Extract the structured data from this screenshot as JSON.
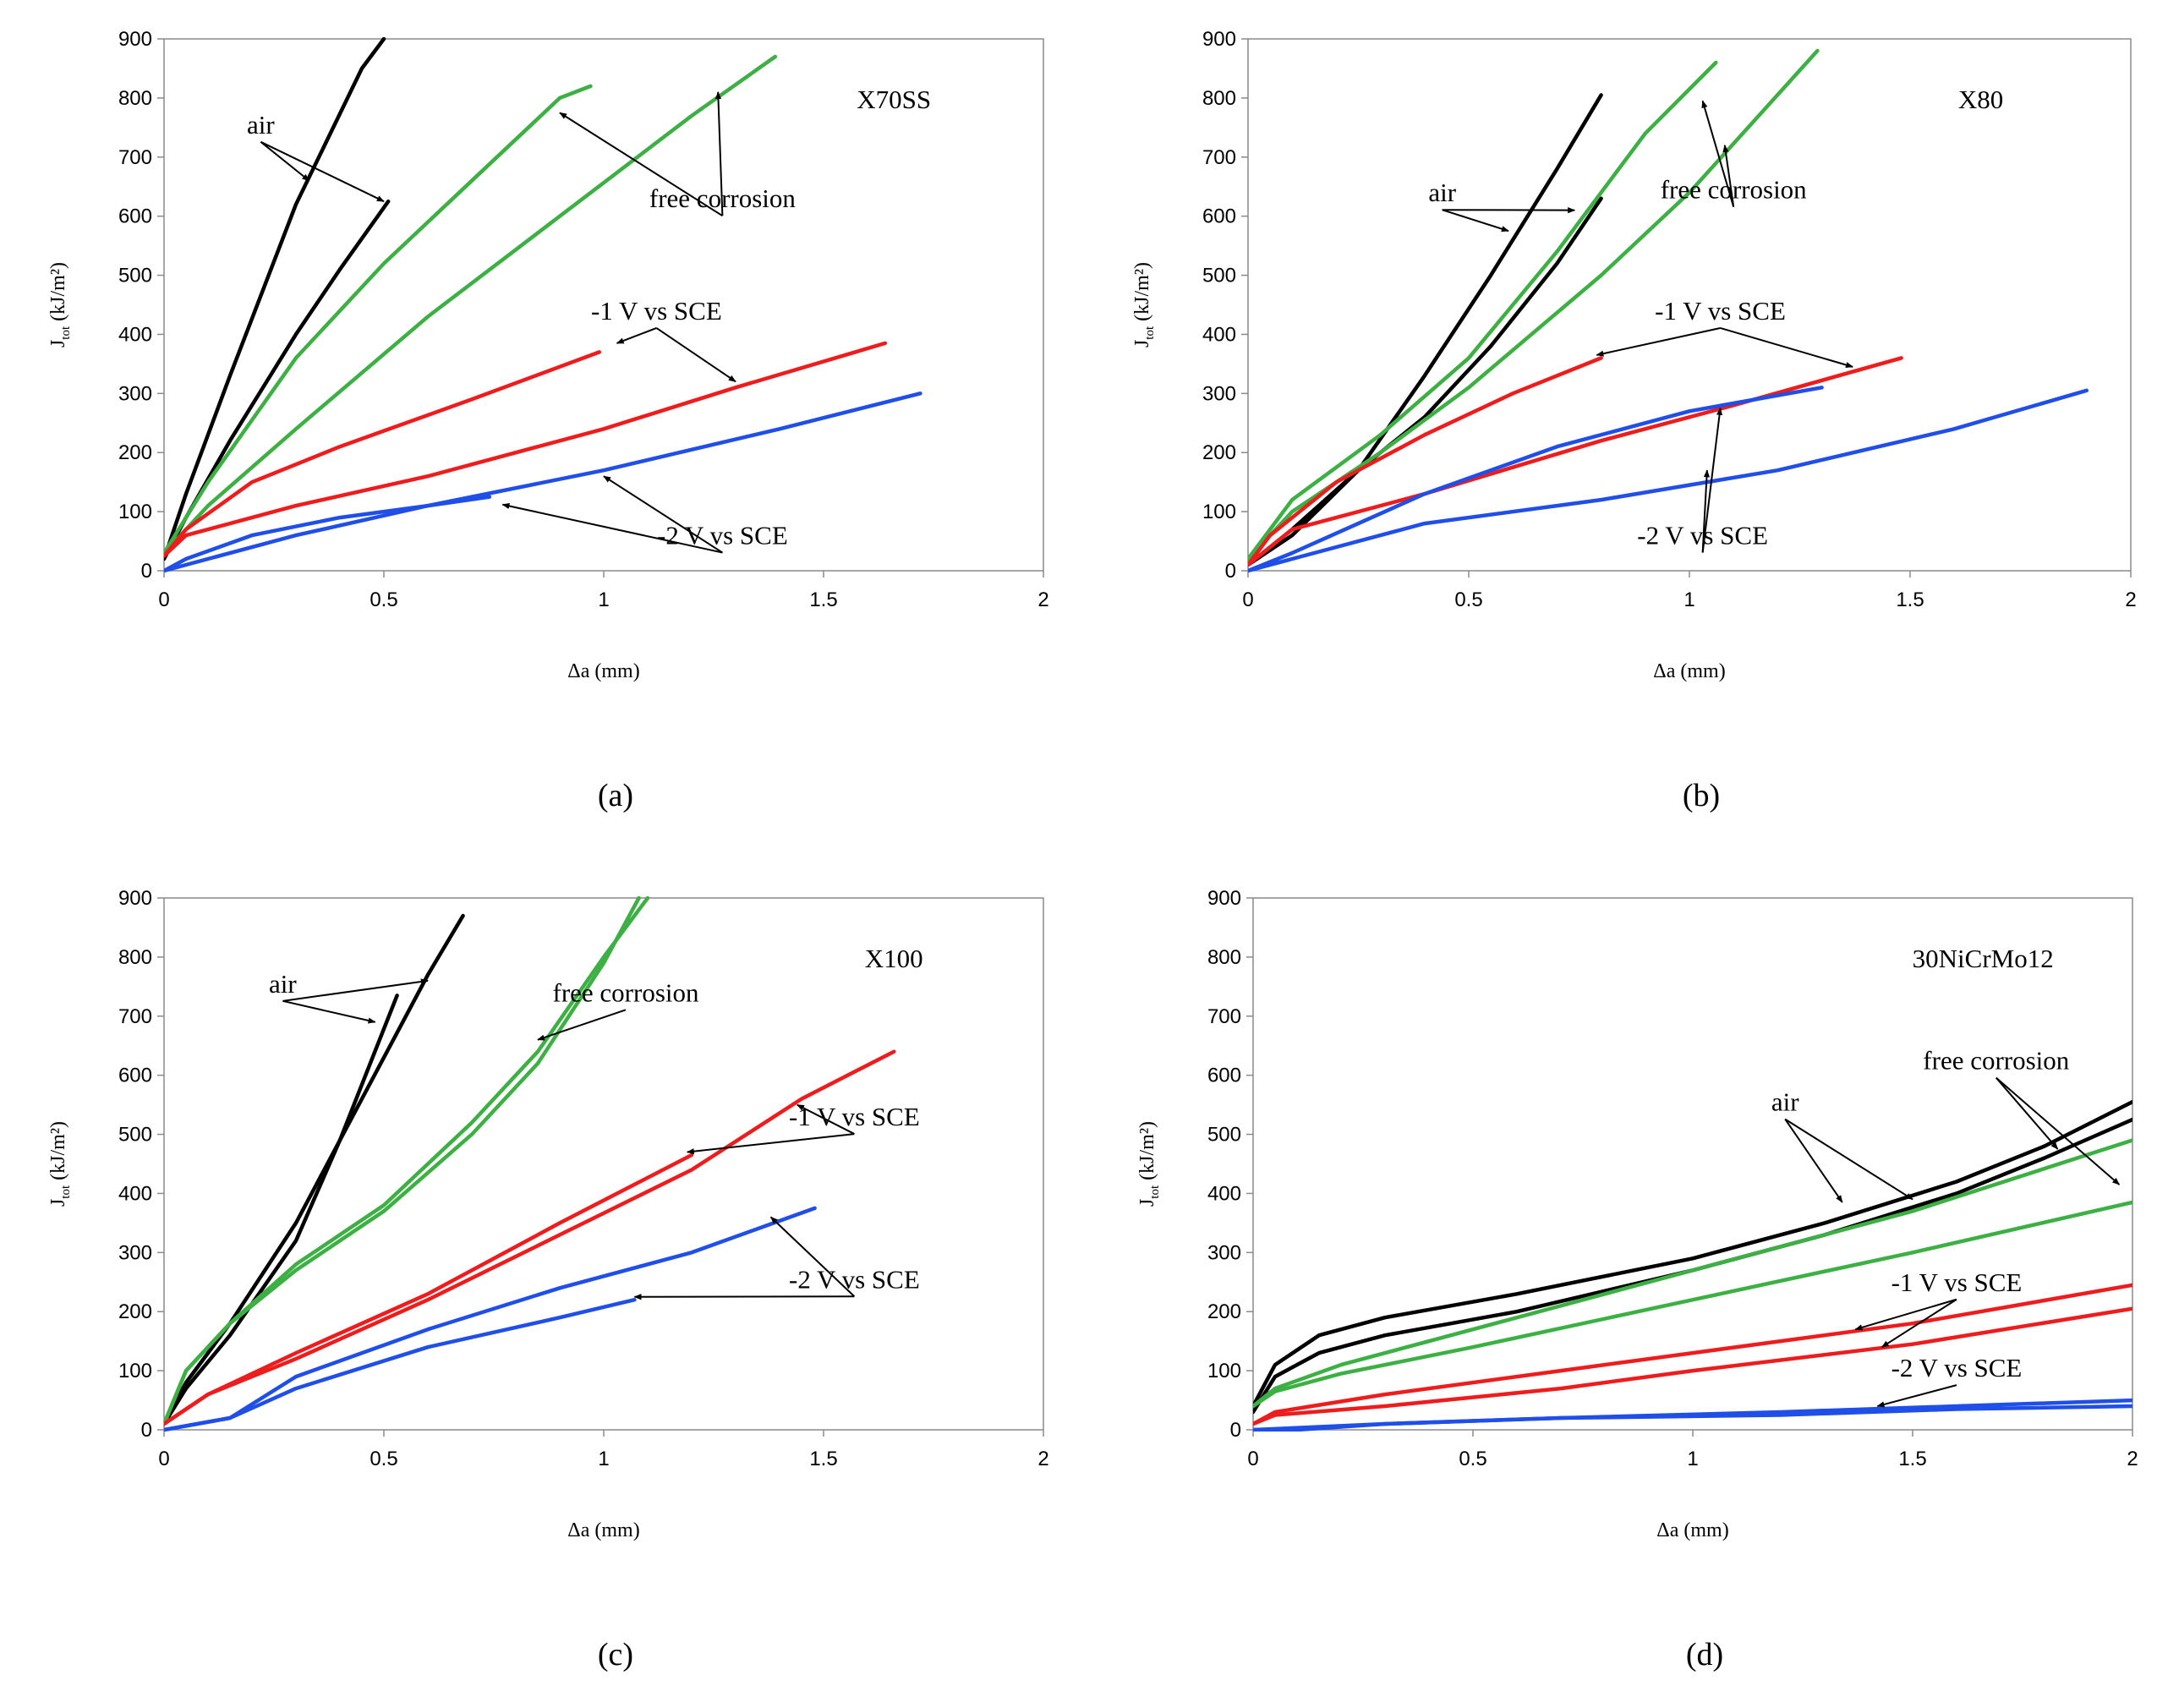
{
  "colors": {
    "air": "#000000",
    "free_corrosion": "#3cb043",
    "minus1V": "#ee1c1c",
    "minus2V": "#1f4fe8"
  },
  "chart_data": [
    {
      "type": "line",
      "panel_label": "(a)",
      "material": "X70SS",
      "xlabel": "Δa (mm)",
      "ylabel_main": "J",
      "ylabel_sub": "tot",
      "ylabel_rest": " (kJ/m²)",
      "xlim": [
        0,
        2
      ],
      "ylim": [
        0,
        900
      ],
      "xticks": [
        "0",
        "0.5",
        "1",
        "1.5",
        "2"
      ],
      "yticks": [
        "0",
        "100",
        "200",
        "300",
        "400",
        "500",
        "600",
        "700",
        "800",
        "900"
      ],
      "series": [
        {
          "group": "air",
          "x": [
            0,
            0.05,
            0.15,
            0.3,
            0.45,
            0.5
          ],
          "y": [
            20,
            130,
            330,
            620,
            850,
            900
          ]
        },
        {
          "group": "air",
          "x": [
            0,
            0.05,
            0.15,
            0.3,
            0.4,
            0.51
          ],
          "y": [
            20,
            90,
            220,
            400,
            510,
            625
          ]
        },
        {
          "group": "free_corrosion",
          "x": [
            0,
            0.1,
            0.3,
            0.5,
            0.7,
            0.9,
            0.97
          ],
          "y": [
            30,
            150,
            360,
            520,
            660,
            800,
            820
          ]
        },
        {
          "group": "free_corrosion",
          "x": [
            0,
            0.1,
            0.3,
            0.6,
            0.9,
            1.2,
            1.39
          ],
          "y": [
            30,
            110,
            240,
            430,
            600,
            770,
            870
          ]
        },
        {
          "group": "minus1V",
          "x": [
            0,
            0.05,
            0.2,
            0.4,
            0.7,
            0.99
          ],
          "y": [
            25,
            70,
            150,
            210,
            290,
            370
          ]
        },
        {
          "group": "minus1V",
          "x": [
            0,
            0.05,
            0.3,
            0.6,
            1.0,
            1.3,
            1.64
          ],
          "y": [
            25,
            60,
            110,
            160,
            240,
            310,
            385
          ]
        },
        {
          "group": "minus2V",
          "x": [
            0,
            0.05,
            0.2,
            0.4,
            0.6,
            0.74
          ],
          "y": [
            0,
            20,
            60,
            90,
            110,
            125
          ]
        },
        {
          "group": "minus2V",
          "x": [
            0,
            0.05,
            0.3,
            0.6,
            1.0,
            1.4,
            1.72
          ],
          "y": [
            0,
            10,
            60,
            110,
            170,
            240,
            300
          ]
        }
      ],
      "annotations": [
        {
          "id": "air",
          "text": "air",
          "tx": 0.22,
          "ty": 740,
          "targets": [
            [
              0.33,
              660
            ],
            [
              0.5,
              625
            ]
          ]
        },
        {
          "id": "fc",
          "text": "free corrosion",
          "tx": 1.27,
          "ty": 615,
          "targets": [
            [
              0.9,
              775
            ],
            [
              1.26,
              810
            ]
          ]
        },
        {
          "id": "m1",
          "text": "-1 V vs SCE",
          "tx": 1.12,
          "ty": 425,
          "targets": [
            [
              1.03,
              385
            ],
            [
              1.3,
              320
            ]
          ]
        },
        {
          "id": "m2",
          "text": "-2 V vs SCE",
          "tx": 1.27,
          "ty": 45,
          "targets": [
            [
              0.77,
              112
            ],
            [
              1.0,
              160
            ]
          ]
        }
      ]
    },
    {
      "type": "line",
      "panel_label": "(b)",
      "material": "X80",
      "xlabel": "Δa (mm)",
      "ylabel_main": "J",
      "ylabel_sub": "tot",
      "ylabel_rest": " (kJ/m²)",
      "xlim": [
        0,
        2
      ],
      "ylim": [
        0,
        900
      ],
      "xticks": [
        "0",
        "0.5",
        "1",
        "1.5",
        "2"
      ],
      "yticks": [
        "0",
        "100",
        "200",
        "300",
        "400",
        "500",
        "600",
        "700",
        "800",
        "900"
      ],
      "series": [
        {
          "group": "air",
          "x": [
            0,
            0.1,
            0.25,
            0.4,
            0.55,
            0.7,
            0.8
          ],
          "y": [
            10,
            60,
            170,
            330,
            500,
            680,
            805
          ]
        },
        {
          "group": "air",
          "x": [
            0,
            0.1,
            0.25,
            0.4,
            0.55,
            0.7,
            0.8
          ],
          "y": [
            10,
            70,
            170,
            260,
            380,
            520,
            630
          ]
        },
        {
          "group": "free_corrosion",
          "x": [
            0,
            0.1,
            0.3,
            0.5,
            0.7,
            0.9,
            1.06
          ],
          "y": [
            20,
            120,
            230,
            360,
            540,
            740,
            860
          ]
        },
        {
          "group": "free_corrosion",
          "x": [
            0,
            0.1,
            0.3,
            0.5,
            0.8,
            1.0,
            1.29
          ],
          "y": [
            20,
            100,
            200,
            310,
            500,
            640,
            880
          ]
        },
        {
          "group": "minus1V",
          "x": [
            0,
            0.05,
            0.2,
            0.4,
            0.6,
            0.8
          ],
          "y": [
            10,
            60,
            150,
            230,
            300,
            360
          ]
        },
        {
          "group": "minus1V",
          "x": [
            0,
            0.1,
            0.4,
            0.8,
            1.1,
            1.48
          ],
          "y": [
            10,
            70,
            130,
            220,
            280,
            360
          ]
        },
        {
          "group": "minus2V",
          "x": [
            0,
            0.1,
            0.4,
            0.7,
            1.0,
            1.3
          ],
          "y": [
            0,
            30,
            130,
            210,
            270,
            310
          ]
        },
        {
          "group": "minus2V",
          "x": [
            0,
            0.1,
            0.4,
            0.8,
            1.2,
            1.6,
            1.9
          ],
          "y": [
            0,
            20,
            80,
            120,
            170,
            240,
            305
          ]
        }
      ],
      "annotations": [
        {
          "id": "air",
          "text": "air",
          "tx": 0.44,
          "ty": 625,
          "targets": [
            [
              0.59,
              575
            ],
            [
              0.74,
              610
            ]
          ]
        },
        {
          "id": "fc",
          "text": "free corrosion",
          "tx": 1.1,
          "ty": 630,
          "targets": [
            [
              1.03,
              795
            ],
            [
              1.08,
              720
            ]
          ]
        },
        {
          "id": "m1",
          "text": "-1 V vs SCE",
          "tx": 1.07,
          "ty": 425,
          "targets": [
            [
              0.79,
              365
            ],
            [
              1.37,
              345
            ]
          ]
        },
        {
          "id": "m2",
          "text": "-2 V vs SCE",
          "tx": 1.03,
          "ty": 45,
          "targets": [
            [
              1.07,
              275
            ],
            [
              1.04,
              170
            ]
          ]
        }
      ]
    },
    {
      "type": "line",
      "panel_label": "(c)",
      "material": "X100",
      "xlabel": "Δa (mm)",
      "ylabel_main": "J",
      "ylabel_sub": "tot",
      "ylabel_rest": " (kJ/m²)",
      "xlim": [
        0,
        2
      ],
      "ylim": [
        0,
        900
      ],
      "xticks": [
        "0",
        "0.5",
        "1",
        "1.5",
        "2"
      ],
      "yticks": [
        "0",
        "100",
        "200",
        "300",
        "400",
        "500",
        "600",
        "700",
        "800",
        "900"
      ],
      "series": [
        {
          "group": "air",
          "x": [
            0,
            0.05,
            0.15,
            0.3,
            0.45,
            0.6,
            0.68
          ],
          "y": [
            10,
            80,
            180,
            350,
            560,
            770,
            870
          ]
        },
        {
          "group": "air",
          "x": [
            0,
            0.05,
            0.15,
            0.3,
            0.4,
            0.53
          ],
          "y": [
            10,
            70,
            160,
            320,
            490,
            735
          ]
        },
        {
          "group": "free_corrosion",
          "x": [
            0,
            0.05,
            0.15,
            0.3,
            0.5,
            0.7,
            0.85,
            1.0,
            1.1
          ],
          "y": [
            10,
            100,
            180,
            280,
            380,
            520,
            640,
            800,
            900
          ]
        },
        {
          "group": "free_corrosion",
          "x": [
            0,
            0.05,
            0.15,
            0.3,
            0.5,
            0.7,
            0.85,
            1.0,
            1.08
          ],
          "y": [
            10,
            100,
            180,
            270,
            370,
            500,
            620,
            790,
            900
          ]
        },
        {
          "group": "minus1V",
          "x": [
            0,
            0.1,
            0.3,
            0.6,
            0.9,
            1.2
          ],
          "y": [
            10,
            60,
            130,
            230,
            350,
            465
          ]
        },
        {
          "group": "minus1V",
          "x": [
            0,
            0.1,
            0.3,
            0.6,
            0.9,
            1.2,
            1.45,
            1.66
          ],
          "y": [
            10,
            60,
            120,
            220,
            330,
            440,
            560,
            640
          ]
        },
        {
          "group": "minus2V",
          "x": [
            0,
            0.15,
            0.3,
            0.6,
            0.9,
            1.07
          ],
          "y": [
            0,
            20,
            70,
            140,
            190,
            220
          ]
        },
        {
          "group": "minus2V",
          "x": [
            0,
            0.15,
            0.3,
            0.6,
            0.9,
            1.2,
            1.48
          ],
          "y": [
            0,
            20,
            90,
            170,
            240,
            300,
            375
          ]
        }
      ],
      "annotations": [
        {
          "id": "air",
          "text": "air",
          "tx": 0.27,
          "ty": 740,
          "targets": [
            [
              0.48,
              690
            ],
            [
              0.6,
              760
            ]
          ]
        },
        {
          "id": "fc",
          "text": "free corrosion",
          "tx": 1.05,
          "ty": 725,
          "targets": [
            [
              0.85,
              660
            ]
          ]
        },
        {
          "id": "m1",
          "text": "-1 V vs SCE",
          "tx": 1.57,
          "ty": 515,
          "targets": [
            [
              1.19,
              470
            ],
            [
              1.44,
              550
            ]
          ]
        },
        {
          "id": "m2",
          "text": "-2 V vs SCE",
          "tx": 1.57,
          "ty": 240,
          "targets": [
            [
              1.38,
              360
            ],
            [
              1.07,
              225
            ]
          ]
        }
      ]
    },
    {
      "type": "line",
      "panel_label": "(d)",
      "material": "30NiCrMo12",
      "xlabel": "Δa (mm)",
      "ylabel_main": "J",
      "ylabel_sub": "tot",
      "ylabel_rest": " (kJ/m²)",
      "xlim": [
        0,
        2
      ],
      "ylim": [
        0,
        900
      ],
      "xticks": [
        "0",
        "0.5",
        "1",
        "1.5",
        "2"
      ],
      "yticks": [
        "0",
        "100",
        "200",
        "300",
        "400",
        "500",
        "600",
        "700",
        "800",
        "900"
      ],
      "series": [
        {
          "group": "air",
          "x": [
            0,
            0.05,
            0.15,
            0.3,
            0.6,
            1.0,
            1.3,
            1.6,
            1.8,
            2.0
          ],
          "y": [
            40,
            110,
            160,
            190,
            230,
            290,
            350,
            420,
            480,
            555
          ]
        },
        {
          "group": "air",
          "x": [
            0,
            0.05,
            0.15,
            0.3,
            0.6,
            1.0,
            1.3,
            1.6,
            1.8,
            2.0
          ],
          "y": [
            30,
            90,
            130,
            160,
            200,
            270,
            330,
            400,
            460,
            525
          ]
        },
        {
          "group": "free_corrosion",
          "x": [
            0,
            0.05,
            0.2,
            0.5,
            1.0,
            1.5,
            2.0
          ],
          "y": [
            40,
            70,
            110,
            170,
            270,
            370,
            490
          ]
        },
        {
          "group": "free_corrosion",
          "x": [
            0,
            0.05,
            0.2,
            0.5,
            1.0,
            1.5,
            2.0
          ],
          "y": [
            40,
            65,
            95,
            140,
            220,
            300,
            385
          ]
        },
        {
          "group": "minus1V",
          "x": [
            0,
            0.05,
            0.3,
            0.7,
            1.0,
            1.5,
            2.0
          ],
          "y": [
            10,
            30,
            60,
            100,
            130,
            180,
            245
          ]
        },
        {
          "group": "minus1V",
          "x": [
            0,
            0.05,
            0.3,
            0.7,
            1.0,
            1.5,
            2.0
          ],
          "y": [
            10,
            25,
            40,
            70,
            100,
            145,
            205
          ]
        },
        {
          "group": "minus2V",
          "x": [
            0,
            0.1,
            0.3,
            0.7,
            1.2,
            1.6,
            2.0
          ],
          "y": [
            0,
            0,
            10,
            20,
            30,
            40,
            50
          ]
        },
        {
          "group": "minus2V",
          "x": [
            0,
            0.3,
            0.7,
            1.2,
            1.6,
            2.0
          ],
          "y": [
            0,
            10,
            20,
            25,
            35,
            40
          ]
        }
      ],
      "annotations": [
        {
          "id": "air",
          "text": "air",
          "tx": 1.21,
          "ty": 540,
          "targets": [
            [
              1.34,
              385
            ],
            [
              1.5,
              390
            ]
          ]
        },
        {
          "id": "fc",
          "text": "free corrosion",
          "tx": 1.69,
          "ty": 610,
          "targets": [
            [
              1.83,
              475
            ],
            [
              1.97,
              415
            ]
          ]
        },
        {
          "id": "m1",
          "text": "-1 V vs SCE",
          "tx": 1.6,
          "ty": 235,
          "targets": [
            [
              1.37,
              170
            ],
            [
              1.43,
              140
            ]
          ]
        },
        {
          "id": "m2",
          "text": "-2 V vs SCE",
          "tx": 1.6,
          "ty": 90,
          "targets": [
            [
              1.42,
              40
            ]
          ]
        }
      ]
    }
  ]
}
